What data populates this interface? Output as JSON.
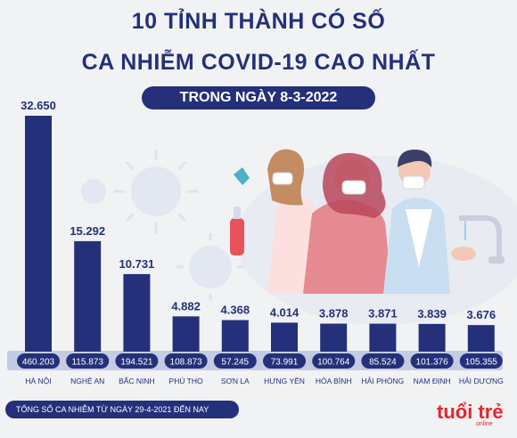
{
  "title_line1": "10 TỈNH THÀNH CÓ SỐ",
  "title_line2": "CA NHIỄM COVID-19 CAO NHẤT",
  "date_label": "TRONG NGÀY 8-3-2022",
  "legend_note": "TỔNG SỐ CA NHIỄM TỪ NGÀY 29-4-2021 ĐẾN NAY",
  "logo_text": "tuổi trẻ",
  "logo_sub": "online",
  "colors": {
    "navy": "#24307a",
    "accent_red": "#e8232a",
    "background": "#f1f2f4",
    "total_strip": "#c4cbe3"
  },
  "chart_data": {
    "type": "bar",
    "title": "10 TỈNH THÀNH CÓ SỐ CA NHIỄM COVID-19 CAO NHẤT",
    "subtitle": "TRONG NGÀY 8-3-2022",
    "categories": [
      "HÀ NỘI",
      "NGHỆ AN",
      "BẮC NINH",
      "PHÚ THỌ",
      "SƠN LA",
      "HƯNG YÊN",
      "HÒA BÌNH",
      "HẢI PHÒNG",
      "NAM ĐỊNH",
      "HẢI DƯƠNG"
    ],
    "series": [
      {
        "values": [
          32650,
          15292,
          10731,
          4882,
          4368,
          4014,
          3878,
          3871,
          3839,
          3676
        ]
      },
      {
        "values": [
          460203,
          115873,
          194521,
          108873,
          57245,
          73991,
          100764,
          85524,
          101376,
          105355
        ]
      }
    ],
    "value_labels": [
      "32.650",
      "15.292",
      "10.731",
      "4.882",
      "4.368",
      "4.014",
      "3.878",
      "3.871",
      "3.839",
      "3.676"
    ],
    "total_labels": [
      "460.203",
      "115.873",
      "194.521",
      "108.873",
      "57.245",
      "73.991",
      "100.764",
      "85.524",
      "101.376",
      "105.355"
    ],
    "ylim": [
      0,
      32650
    ]
  }
}
